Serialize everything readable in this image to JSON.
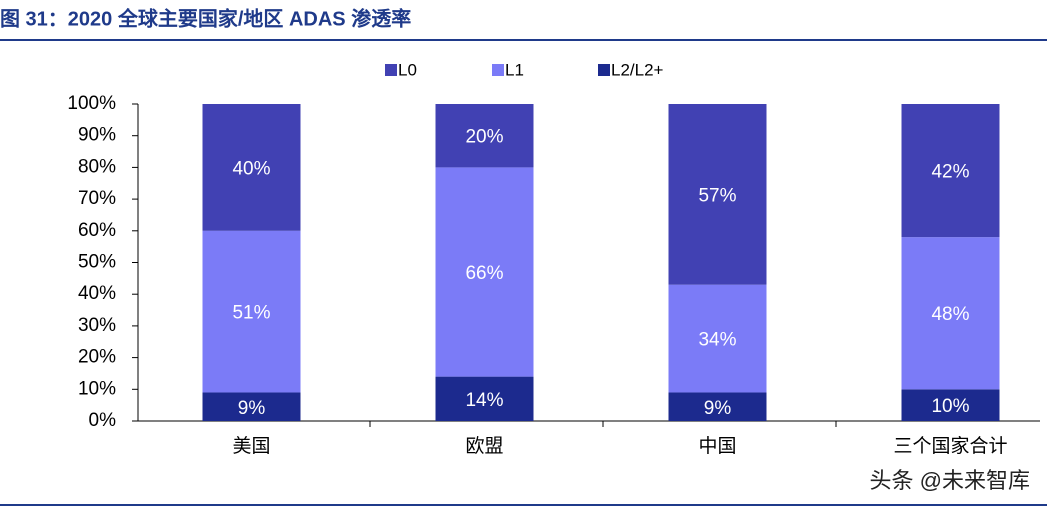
{
  "chart_data": {
    "type": "stacked_bar",
    "title": "图 31：2020 全球主要国家/地区 ADAS 渗透率",
    "categories": [
      "美国",
      "欧盟",
      "中国",
      "三个国家合计"
    ],
    "series": [
      {
        "name": "L0",
        "color": "#4141b3",
        "values": [
          40,
          20,
          57,
          42
        ],
        "value_labels": [
          "40%",
          "20%",
          "57%",
          "42%"
        ]
      },
      {
        "name": "L1",
        "color": "#7b7bf7",
        "values": [
          51,
          66,
          34,
          48
        ],
        "value_labels": [
          "51%",
          "66%",
          "34%",
          "48%"
        ]
      },
      {
        "name": "L2/L2+",
        "color": "#1c2a8e",
        "values": [
          9,
          14,
          9,
          10
        ],
        "value_labels": [
          "9%",
          "14%",
          "9%",
          "10%"
        ]
      }
    ],
    "ylim": [
      0,
      100
    ],
    "yticks": [
      {
        "value": 0,
        "label": "0%"
      },
      {
        "value": 10,
        "label": "10%"
      },
      {
        "value": 20,
        "label": "20%"
      },
      {
        "value": 30,
        "label": "30%"
      },
      {
        "value": 40,
        "label": "40%"
      },
      {
        "value": 50,
        "label": "50%"
      },
      {
        "value": 60,
        "label": "60%"
      },
      {
        "value": 70,
        "label": "70%"
      },
      {
        "value": 80,
        "label": "80%"
      },
      {
        "value": 90,
        "label": "90%"
      },
      {
        "value": 100,
        "label": "100%"
      }
    ],
    "legend": "top",
    "annotation": "头条 @未来智库"
  }
}
